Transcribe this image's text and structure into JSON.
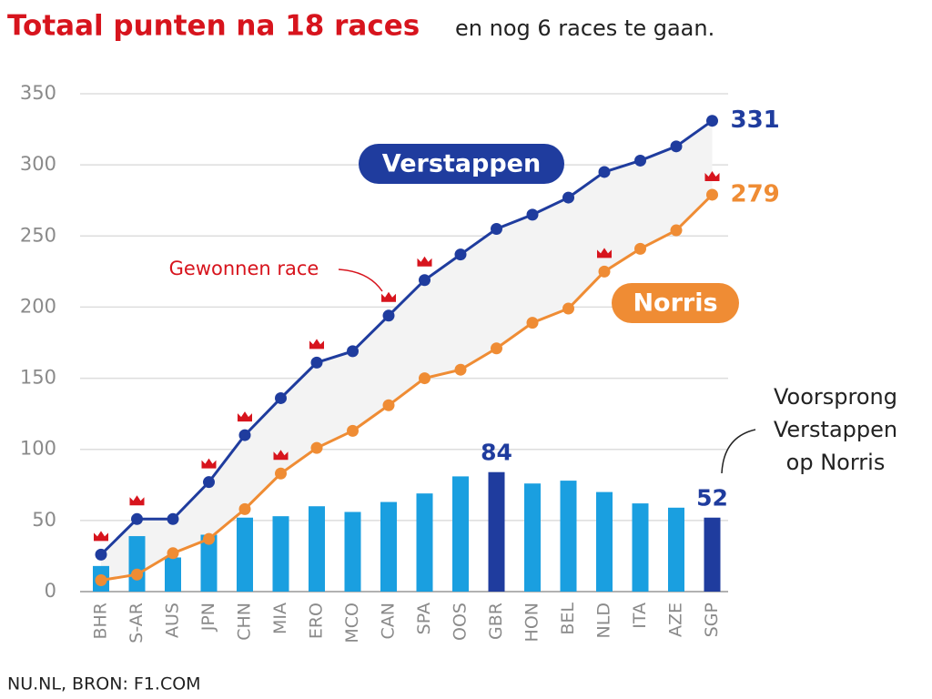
{
  "chart_data": {
    "type": "line-bar",
    "title": "Totaal punten na 18 races",
    "subtitle": "en nog 6 races te gaan.",
    "source": "NU.NL, BRON: F1.COM",
    "categories": [
      "BHR",
      "S-AR",
      "AUS",
      "JPN",
      "CHN",
      "MIA",
      "ERO",
      "MCO",
      "CAN",
      "SPA",
      "OOS",
      "GBR",
      "HON",
      "BEL",
      "NLD",
      "ITA",
      "AZE",
      "SGP"
    ],
    "series": [
      {
        "name": "Verstappen",
        "color": "#1f3c9e",
        "values": [
          26,
          51,
          51,
          77,
          110,
          136,
          161,
          169,
          194,
          219,
          237,
          255,
          265,
          277,
          295,
          303,
          313,
          331
        ],
        "wins": [
          true,
          true,
          false,
          true,
          true,
          false,
          true,
          false,
          true,
          true,
          false,
          false,
          false,
          false,
          false,
          false,
          false,
          false
        ]
      },
      {
        "name": "Norris",
        "color": "#ef8c34",
        "values": [
          8,
          12,
          27,
          37,
          58,
          83,
          101,
          113,
          131,
          150,
          156,
          171,
          189,
          199,
          225,
          241,
          254,
          279
        ],
        "wins": [
          false,
          false,
          false,
          false,
          false,
          true,
          false,
          false,
          false,
          false,
          false,
          false,
          false,
          false,
          true,
          false,
          false,
          true
        ]
      }
    ],
    "bars": {
      "name": "Voorsprong Verstappen op Norris",
      "label_lines": [
        "Voorsprong",
        "Verstappen",
        "op Norris"
      ],
      "values": [
        18,
        39,
        24,
        40,
        52,
        53,
        60,
        56,
        63,
        69,
        81,
        84,
        76,
        78,
        70,
        62,
        59,
        52
      ],
      "colors": [
        "#1a9fe0",
        "#1a9fe0",
        "#1a9fe0",
        "#1a9fe0",
        "#1a9fe0",
        "#1a9fe0",
        "#1a9fe0",
        "#1a9fe0",
        "#1a9fe0",
        "#1a9fe0",
        "#1a9fe0",
        "#1f3c9e",
        "#1a9fe0",
        "#1a9fe0",
        "#1a9fe0",
        "#1a9fe0",
        "#1a9fe0",
        "#1f3c9e"
      ],
      "label_color": "#1f3c9e"
    },
    "win_annotation": "Gewonnen race",
    "win_color": "#d7141d",
    "ylim": [
      0,
      350
    ],
    "yticks": [
      0,
      50,
      100,
      150,
      200,
      250,
      300,
      350
    ],
    "grid": true
  }
}
